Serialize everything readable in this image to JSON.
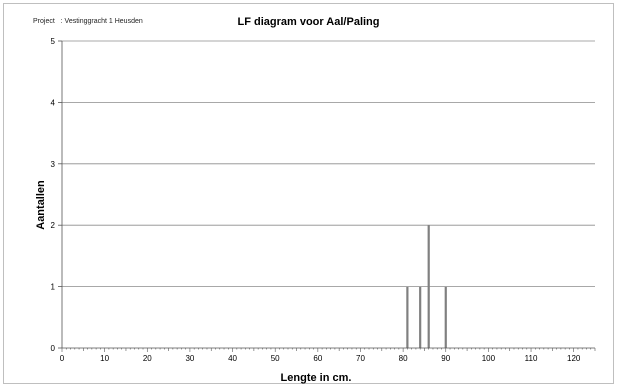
{
  "project_label": "Project",
  "project_value": ": Vestinggracht 1 Heusden",
  "chart_data": {
    "type": "bar",
    "title": "LF diagram voor Aal/Paling",
    "xlabel": "Lengte in cm.",
    "ylabel": "Aantallen",
    "xlim": [
      0,
      125
    ],
    "ylim": [
      0,
      5
    ],
    "xticks": [
      0,
      10,
      20,
      30,
      40,
      50,
      60,
      70,
      80,
      90,
      100,
      110,
      120
    ],
    "yticks": [
      0,
      1,
      2,
      3,
      4,
      5
    ],
    "grid": "horizontal",
    "x": [
      81,
      84,
      86,
      90
    ],
    "values": [
      1,
      1,
      2,
      1
    ],
    "bar_color": "#808080"
  }
}
